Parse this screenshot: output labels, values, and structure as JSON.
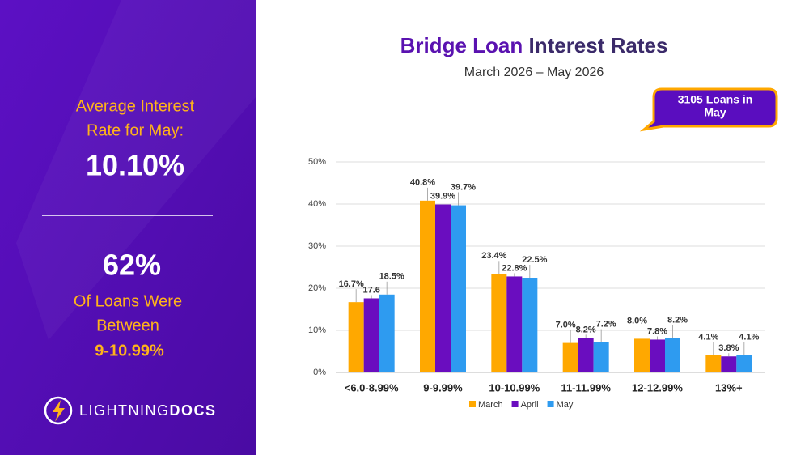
{
  "sidebar": {
    "avg_label_lines": [
      "Average Interest",
      "Rate for May:"
    ],
    "avg_value": "10.10%",
    "share_value": "62%",
    "share_label_lines": [
      "Of Loans Were",
      "Between"
    ],
    "share_range": "9-10.99%",
    "logo_light": "LIGHTNING",
    "logo_bold": "DOCS"
  },
  "chart_data": {
    "type": "bar",
    "title_highlight": "Bridge Loan",
    "title_rest": "Interest Rates",
    "subtitle": "March 2026 – May 2026",
    "callout_lines": [
      "3105 Loans in",
      "May"
    ],
    "categories": [
      "<6.0-8.99%",
      "9-9.99%",
      "10-10.99%",
      "11-11.99%",
      "12-12.99%",
      "13%+"
    ],
    "series": [
      {
        "name": "March",
        "color": "#FFA800",
        "values": [
          16.7,
          40.8,
          23.4,
          7.0,
          8.0,
          4.1
        ],
        "value_labels": [
          "16.7%",
          "40.8%",
          "23.4%",
          "7.0%",
          "8.0%",
          "4.1%"
        ]
      },
      {
        "name": "April",
        "color": "#6A0DBF",
        "values": [
          17.6,
          39.9,
          22.8,
          8.2,
          7.8,
          3.8
        ],
        "value_labels": [
          "17.6",
          "39.9%",
          "22.8%",
          "8.2%",
          "7.8%",
          "3.8%"
        ]
      },
      {
        "name": "May",
        "color": "#2E9BF0",
        "values": [
          18.5,
          39.7,
          22.5,
          7.2,
          8.2,
          4.1
        ],
        "value_labels": [
          "18.5%",
          "39.7%",
          "22.5%",
          "7.2%",
          "8.2%",
          "4.1%"
        ]
      }
    ],
    "ylim": [
      0,
      50
    ],
    "yticks": [
      {
        "value": 0,
        "label": "0%"
      },
      {
        "value": 10,
        "label": "10%"
      },
      {
        "value": 20,
        "label": "20%"
      },
      {
        "value": 30,
        "label": "30%"
      },
      {
        "value": 40,
        "label": "40%"
      },
      {
        "value": 50,
        "label": "50%"
      }
    ],
    "grid": true,
    "legend": "bottom"
  }
}
